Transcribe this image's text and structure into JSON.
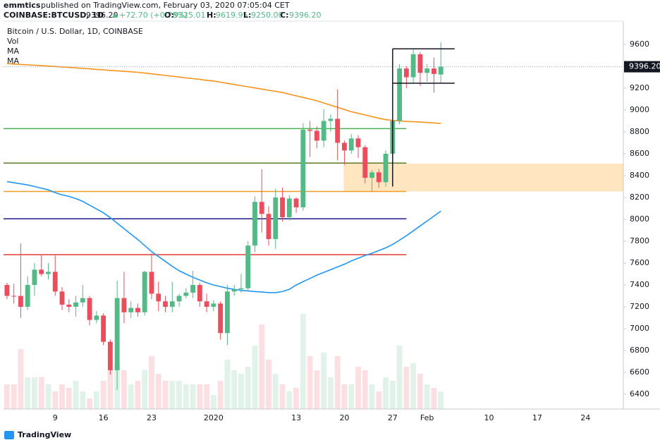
{
  "header": {
    "author": "emmtics",
    "published": "published on TradingView.com, February 03, 2020 07:05:04 CET",
    "symbol": "COINBASE:BTCUSD, 1D",
    "last": "9396.20",
    "change": "+72.70 (+0.78%)",
    "ohlc": [
      {
        "label": "O:",
        "value": "9325.01"
      },
      {
        "label": "H:",
        "value": "9619.95"
      },
      {
        "label": "L:",
        "value": "9250.00"
      },
      {
        "label": "C:",
        "value": "9396.20"
      }
    ]
  },
  "footer": {
    "brand": "TradingView"
  },
  "chart_data": {
    "type": "candlestick",
    "title": "Bitcoin / U.S. Dollar, 1D, COINBASE",
    "categories": [
      null,
      null,
      null,
      null,
      null,
      null,
      null,
      "9",
      null,
      null,
      null,
      null,
      null,
      null,
      "16",
      null,
      null,
      null,
      null,
      null,
      null,
      "23",
      null,
      null,
      null,
      null,
      null,
      null,
      null,
      null,
      "2020",
      null,
      null,
      null,
      null,
      null,
      null,
      null,
      null,
      null,
      null,
      null,
      "13",
      null,
      null,
      null,
      null,
      null,
      null,
      "20",
      null,
      null,
      null,
      null,
      null,
      null,
      "27",
      null,
      null,
      null,
      null,
      "Feb",
      null,
      null,
      null,
      null,
      null,
      null,
      null,
      null,
      "10",
      null,
      null,
      null,
      null,
      null,
      null,
      "17",
      null,
      null,
      null,
      null,
      null,
      null,
      "24",
      null,
      null,
      null,
      null,
      null
    ],
    "open": [
      7400,
      7300,
      7300,
      7200,
      7400,
      7540,
      7500,
      7520,
      7340,
      7220,
      7200,
      7240,
      7280,
      7080,
      7120,
      6880,
      6620,
      7280,
      7150,
      7190,
      7150,
      7520,
      7320,
      7250,
      7200,
      7250,
      7300,
      7330,
      7400,
      7250,
      7200,
      7230,
      6960,
      7340,
      7360,
      7370,
      7760,
      8160,
      8050,
      7820,
      8200,
      8020,
      8190,
      8110,
      8820,
      8810,
      8720,
      8900,
      8920,
      8700,
      8630,
      8740,
      8660,
      8380,
      8430,
      8340,
      8600,
      8900,
      9380,
      9300,
      9510,
      9340,
      9380,
      9325.01,
      null,
      null,
      null,
      null,
      null,
      null,
      null,
      null,
      null,
      null,
      null,
      null,
      null,
      null,
      null,
      null,
      null,
      null,
      null,
      null,
      null,
      null,
      null,
      null,
      null,
      null
    ],
    "high": [
      7420,
      7410,
      7780,
      7480,
      7600,
      7680,
      7600,
      7670,
      7380,
      7270,
      7300,
      7400,
      7300,
      7160,
      7140,
      6900,
      7440,
      7520,
      7250,
      7230,
      7530,
      7690,
      7430,
      7300,
      7430,
      7320,
      7370,
      7530,
      7420,
      7320,
      7260,
      7250,
      7400,
      7400,
      7500,
      7800,
      8210,
      8460,
      8120,
      8280,
      8290,
      8220,
      8200,
      8880,
      8900,
      8850,
      9010,
      8960,
      9190,
      8720,
      8780,
      8770,
      8680,
      8450,
      8460,
      8630,
      8920,
      9420,
      9400,
      9560,
      9530,
      9420,
      9480,
      9619.95,
      null,
      null,
      null,
      null,
      null,
      null,
      null,
      null,
      null,
      null,
      null,
      null,
      null,
      null,
      null,
      null,
      null,
      null,
      null,
      null,
      null,
      null,
      null,
      null,
      null,
      null
    ],
    "low": [
      7270,
      7230,
      7100,
      7170,
      7300,
      7480,
      7450,
      7300,
      7170,
      7150,
      7110,
      7200,
      7030,
      7050,
      6850,
      6580,
      6440,
      7050,
      7100,
      7110,
      7120,
      7270,
      7160,
      7150,
      7150,
      7200,
      7280,
      7280,
      7200,
      7150,
      7160,
      6900,
      6850,
      7300,
      7330,
      7350,
      7700,
      7880,
      7760,
      7730,
      7980,
      7990,
      8060,
      8080,
      8570,
      8650,
      8660,
      8800,
      8540,
      8500,
      8600,
      8560,
      8330,
      8250,
      8290,
      8300,
      8560,
      8870,
      9200,
      9250,
      9220,
      9260,
      9160,
      9250,
      null,
      null,
      null,
      null,
      null,
      null,
      null,
      null,
      null,
      null,
      null,
      null,
      null,
      null,
      null,
      null,
      null,
      null,
      null,
      null,
      null,
      null,
      null,
      null,
      null,
      null
    ],
    "close": [
      7300,
      7295,
      7200,
      7400,
      7540,
      7500,
      7520,
      7340,
      7220,
      7200,
      7240,
      7280,
      7080,
      7120,
      6880,
      6620,
      7280,
      7150,
      7190,
      7150,
      7520,
      7320,
      7250,
      7200,
      7250,
      7300,
      7330,
      7400,
      7250,
      7200,
      7230,
      6960,
      7340,
      7360,
      7370,
      7760,
      8160,
      8050,
      7820,
      8200,
      8020,
      8190,
      8110,
      8820,
      8810,
      8720,
      8900,
      8920,
      8700,
      8630,
      8740,
      8660,
      8380,
      8430,
      8340,
      8600,
      8900,
      9380,
      9300,
      9510,
      9340,
      9380,
      9330,
      9396.2,
      null,
      null,
      null,
      null,
      null,
      null,
      null,
      null,
      null,
      null,
      null,
      null,
      null,
      null,
      null,
      null,
      null,
      null,
      null,
      null,
      null,
      null,
      null,
      null,
      null,
      null
    ],
    "up_color": "#53b987",
    "down_color": "#eb4d5c",
    "volume": {
      "name": "Vol",
      "values": [
        35,
        35,
        85,
        45,
        45,
        45,
        35,
        25,
        35,
        30,
        40,
        25,
        15,
        25,
        40,
        55,
        65,
        55,
        35,
        40,
        55,
        75,
        50,
        40,
        40,
        40,
        35,
        35,
        35,
        35,
        20,
        40,
        70,
        55,
        50,
        60,
        90,
        120,
        70,
        50,
        35,
        25,
        30,
        135,
        75,
        55,
        80,
        45,
        75,
        35,
        35,
        60,
        55,
        35,
        25,
        45,
        40,
        90,
        60,
        65,
        50,
        35,
        30,
        25,
        null,
        null,
        null,
        null,
        null,
        null,
        null,
        null,
        null,
        null,
        null,
        null,
        null,
        null,
        null,
        null,
        null,
        null,
        null,
        null,
        null,
        null,
        null,
        null,
        null,
        null
      ]
    },
    "moving_averages": [
      {
        "name": "MA",
        "color": "#f7931a",
        "values": [
          9425,
          9421,
          9417,
          9413,
          9410,
          9406,
          9402,
          9398,
          9394,
          9390,
          9386,
          9381,
          9377,
          9372,
          9368,
          9363,
          9359,
          9354,
          9350,
          9345,
          9338,
          9331,
          9324,
          9316,
          9309,
          9302,
          9294,
          9287,
          9280,
          9272,
          9265,
          9255,
          9244,
          9234,
          9223,
          9213,
          9202,
          9192,
          9181,
          9171,
          9160,
          9145,
          9130,
          9115,
          9100,
          9085,
          9065,
          9045,
          9025,
          9005,
          8985,
          8970,
          8955,
          8940,
          8925,
          8912,
          8905,
          8900,
          8896,
          8893,
          8890,
          8886,
          8882,
          8877,
          null,
          null,
          null,
          null,
          null,
          null,
          null,
          null,
          null,
          null,
          null,
          null,
          null,
          null,
          null,
          null,
          null,
          null,
          null,
          null,
          null,
          null,
          null,
          null,
          null,
          null
        ]
      },
      {
        "name": "MA",
        "color": "#2196f3",
        "values": [
          8345,
          8335,
          8325,
          8315,
          8300,
          8285,
          8270,
          8245,
          8225,
          8210,
          8190,
          8165,
          8130,
          8095,
          8060,
          8015,
          7965,
          7915,
          7865,
          7815,
          7760,
          7705,
          7660,
          7615,
          7570,
          7530,
          7500,
          7470,
          7445,
          7420,
          7400,
          7385,
          7370,
          7360,
          7350,
          7345,
          7340,
          7335,
          7330,
          7330,
          7340,
          7360,
          7400,
          7430,
          7460,
          7490,
          7515,
          7540,
          7565,
          7590,
          7620,
          7645,
          7670,
          7690,
          7715,
          7740,
          7770,
          7810,
          7850,
          7895,
          7940,
          7985,
          8030,
          8075,
          null,
          null,
          null,
          null,
          null,
          null,
          null,
          null,
          null,
          null,
          null,
          null,
          null,
          null,
          null,
          null,
          null,
          null,
          null,
          null,
          null,
          null,
          null,
          null,
          null,
          null
        ]
      }
    ],
    "levels": [
      {
        "value": 8830,
        "color": "#4caf50"
      },
      {
        "value": 8515,
        "color": "#5b7a23"
      },
      {
        "value": 8255,
        "color": "#f59a23"
      },
      {
        "value": 8005,
        "color": "#1a1a8c"
      },
      {
        "value": 7677,
        "color": "#e53935"
      }
    ],
    "zone": {
      "range": [
        8255,
        8510
      ],
      "color": "#ffe0b2"
    },
    "range_box": [
      9245,
      9560
    ],
    "price_line": {
      "value": 9396.2,
      "label": "9396.20"
    },
    "ylim": [
      6265,
      9813
    ],
    "yticks": [
      6400,
      6600,
      6800,
      7000,
      7200,
      7400,
      7600,
      7800,
      8000,
      8200,
      8400,
      8600,
      8800,
      9000,
      9200,
      9400,
      9600
    ],
    "grid": false
  }
}
